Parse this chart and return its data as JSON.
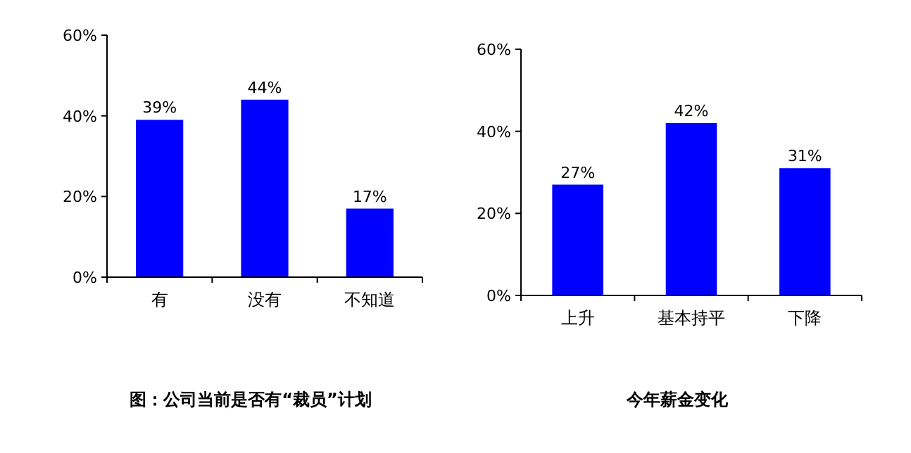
{
  "chart_data": [
    {
      "type": "bar",
      "title": "图：公司当前是否有“裁员”计划",
      "categories": [
        "有",
        "没有",
        "不知道"
      ],
      "values": [
        39,
        44,
        17
      ],
      "value_labels": [
        "39%",
        "44%",
        "17%"
      ],
      "color": "#0000ff",
      "ylim": [
        0,
        60
      ],
      "yticks": [
        {
          "value": 0,
          "label": "0%"
        },
        {
          "value": 20,
          "label": "20%"
        },
        {
          "value": 40,
          "label": "40%"
        },
        {
          "value": 60,
          "label": "60%"
        }
      ]
    },
    {
      "type": "bar",
      "title": "今年薪金变化",
      "categories": [
        "上升",
        "基本持平",
        "下降"
      ],
      "values": [
        27,
        42,
        31
      ],
      "value_labels": [
        "27%",
        "42%",
        "31%"
      ],
      "color": "#0000ff",
      "ylim": [
        0,
        60
      ],
      "yticks": [
        {
          "value": 0,
          "label": "0%"
        },
        {
          "value": 20,
          "label": "20%"
        },
        {
          "value": 40,
          "label": "40%"
        },
        {
          "value": 60,
          "label": "60%"
        }
      ]
    }
  ]
}
